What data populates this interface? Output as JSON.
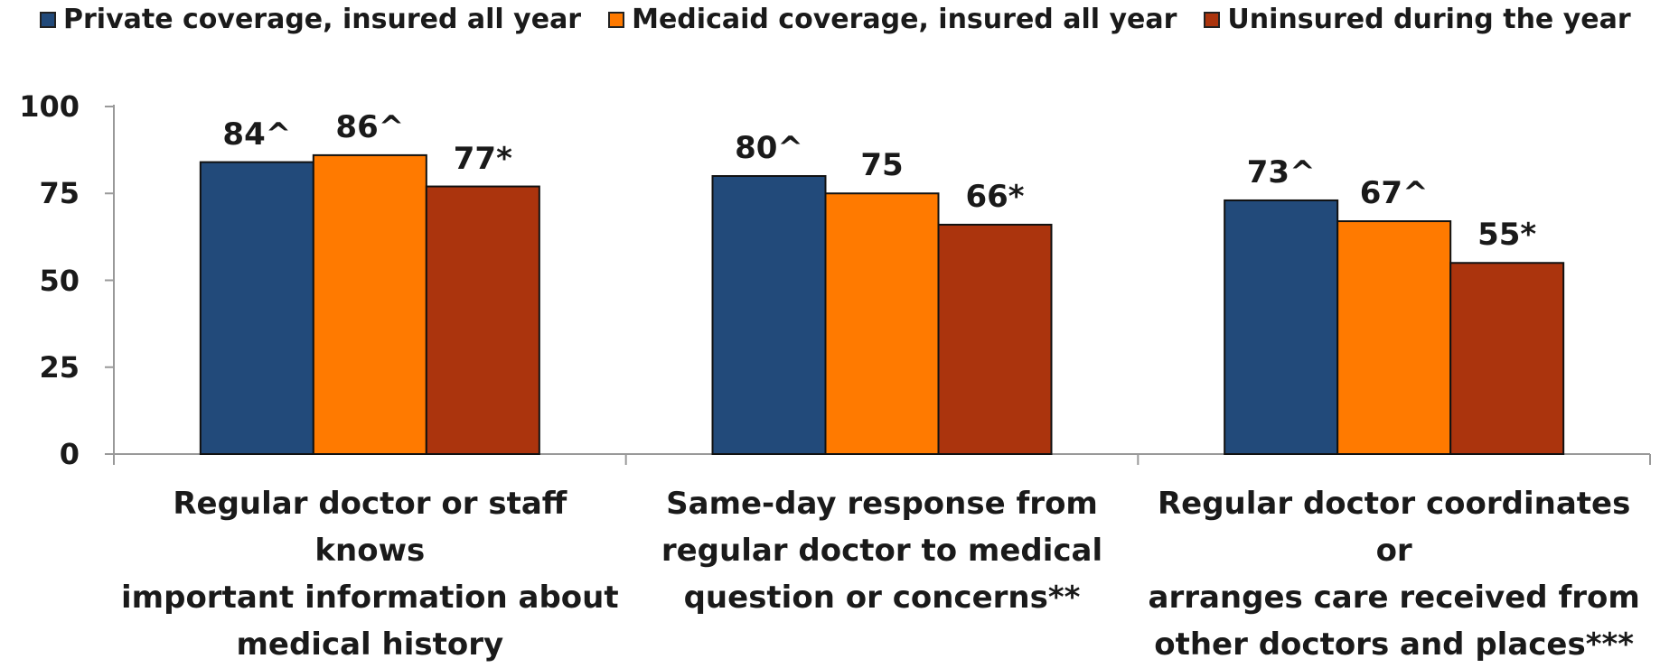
{
  "colors": {
    "private": "#224a7a",
    "medicaid": "#ff7a00",
    "uninsured": "#ab340d",
    "axis": "#999999"
  },
  "chart_data": {
    "type": "bar",
    "title": "",
    "xlabel": "",
    "ylabel": "",
    "ylim": [
      0,
      100
    ],
    "yticks": [
      "0",
      "25",
      "50",
      "75",
      "100"
    ],
    "legend_position": "top",
    "grid": false,
    "categories": [
      "Regular doctor or staff knows important information about medical history",
      "Same-day response from regular doctor to medical question or concerns**",
      "Regular doctor coordinates or arranges care received from other doctors and places***"
    ],
    "category_lines": [
      [
        "Regular doctor or staff knows",
        "important information about",
        "medical history"
      ],
      [
        "Same-day response from",
        "regular doctor to medical",
        "question or concerns**"
      ],
      [
        "Regular doctor coordinates or",
        "arranges care received from",
        "other doctors and places***"
      ]
    ],
    "series": [
      {
        "name": "Private coverage, insured all year",
        "color_key": "private",
        "values": [
          84,
          80,
          73
        ],
        "labels": [
          "84^",
          "80^",
          "73^"
        ]
      },
      {
        "name": "Medicaid coverage, insured all year",
        "color_key": "medicaid",
        "values": [
          86,
          75,
          67
        ],
        "labels": [
          "86^",
          "75",
          "67^"
        ]
      },
      {
        "name": "Uninsured during the year",
        "color_key": "uninsured",
        "values": [
          77,
          66,
          55
        ],
        "labels": [
          "77*",
          "66*",
          "55*"
        ]
      }
    ]
  }
}
